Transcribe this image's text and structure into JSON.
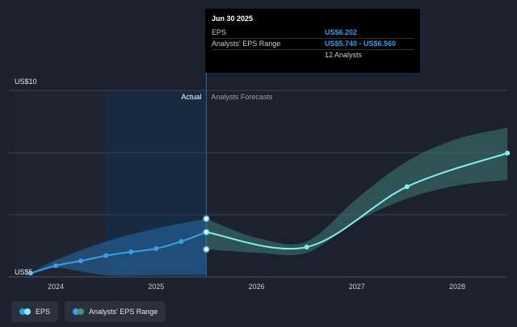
{
  "tooltip": {
    "date": "Jun 30 2025",
    "rows": [
      {
        "label": "EPS",
        "value": "US$6.202"
      },
      {
        "label": "Analysts' EPS Range",
        "value": "US$5.740 - US$6.560"
      },
      {
        "label": "",
        "value": "12 Analysts"
      }
    ]
  },
  "labels": {
    "actual": "Actual",
    "forecast": "Analysts Forecasts"
  },
  "legend": [
    {
      "label": "EPS",
      "color": "#3a9ee6",
      "color2": "#7ef0f0"
    },
    {
      "label": "Analysts' EPS Range",
      "color": "#3a9ee6",
      "color2": "#4d8a84"
    }
  ],
  "colors": {
    "eps_actual": "#3a9ee6",
    "eps_forecast": "#7ef0f0",
    "range_actual": "#2a79c0",
    "range_forecast": "#3f7b76",
    "grid": "#3a424e"
  },
  "chart_data": {
    "type": "line",
    "title": "",
    "xlabel": "",
    "ylabel": "",
    "ylim": [
      5,
      10
    ],
    "y_tick_labels": [
      {
        "value": 10,
        "label": "US$10"
      },
      {
        "value": 5,
        "label": "US$5"
      }
    ],
    "x_tick_labels": [
      {
        "value": 2024.0,
        "label": "2024"
      },
      {
        "value": 2025.0,
        "label": "2025"
      },
      {
        "value": 2026.0,
        "label": "2026"
      },
      {
        "value": 2027.0,
        "label": "2027"
      },
      {
        "value": 2028.0,
        "label": "2028"
      }
    ],
    "xlim": [
      2023.6,
      2028.5
    ],
    "actual_end": 2025.5,
    "highlight_start": 2024.5,
    "grid": true,
    "series": [
      {
        "name": "EPS",
        "kind": "actual",
        "points": [
          [
            2023.75,
            5.1
          ],
          [
            2024.0,
            5.3
          ],
          [
            2024.25,
            5.43
          ],
          [
            2024.5,
            5.57
          ],
          [
            2024.75,
            5.67
          ],
          [
            2025.0,
            5.76
          ],
          [
            2025.25,
            5.95
          ],
          [
            2025.5,
            6.202
          ]
        ]
      },
      {
        "name": "EPS",
        "kind": "forecast",
        "points": [
          [
            2025.5,
            6.202
          ],
          [
            2026.5,
            5.8
          ],
          [
            2027.5,
            7.42
          ],
          [
            2028.5,
            8.32
          ]
        ]
      }
    ],
    "range": {
      "name": "Analysts' EPS Range",
      "actual": [
        [
          2023.75,
          5.1,
          5.1
        ],
        [
          2024.0,
          5.25,
          5.45
        ],
        [
          2024.5,
          5.05,
          5.95
        ],
        [
          2025.0,
          5.05,
          6.3
        ],
        [
          2025.5,
          5.05,
          6.56
        ]
      ],
      "forecast": [
        [
          2025.5,
          5.74,
          6.56
        ],
        [
          2026.0,
          5.65,
          6.05
        ],
        [
          2026.5,
          5.65,
          5.95
        ],
        [
          2027.0,
          6.5,
          7.1
        ],
        [
          2027.5,
          7.1,
          8.1
        ],
        [
          2028.0,
          7.45,
          8.7
        ],
        [
          2028.5,
          7.6,
          9.0
        ]
      ]
    },
    "markers": [
      {
        "x": 2025.5,
        "y": 6.56
      },
      {
        "x": 2025.5,
        "y": 5.74
      }
    ]
  }
}
